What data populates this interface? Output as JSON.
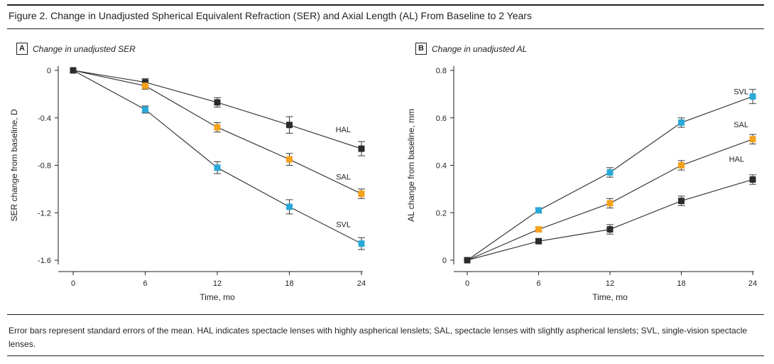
{
  "figure": {
    "title": "Figure 2. Change in Unadjusted Spherical Equivalent Refraction (SER) and Axial Length (AL) From Baseline to 2 Years",
    "caption": "Error bars represent standard errors of the mean. HAL indicates spectacle lenses with highly aspherical lenslets; SAL, spectacle lenses with slightly aspherical lenslets; SVL, single-vision spectacle lenses."
  },
  "panels": {
    "a": {
      "letter": "A",
      "title": "Change in unadjusted SER"
    },
    "b": {
      "letter": "B",
      "title": "Change in unadjusted AL"
    }
  },
  "colors": {
    "HAL": "#2b2b2b",
    "SAL": "#f4a21c",
    "SVL": "#2aa9d8",
    "axis": "#231f20",
    "line": "#3a3a3a"
  },
  "chart_data": [
    {
      "type": "line",
      "title": "Change in unadjusted SER",
      "xlabel": "Time, mo",
      "ylabel": "SER change from baseline, D",
      "x": [
        0,
        6,
        12,
        18,
        24
      ],
      "xticks": [
        "0",
        "6",
        "12",
        "18",
        "24"
      ],
      "yticks": [
        "0",
        "-0.4",
        "-0.8",
        "-1.2",
        "-1.6"
      ],
      "ytick_values": [
        0,
        -0.4,
        -0.8,
        -1.2,
        -1.6
      ],
      "ylim": [
        -1.6,
        0
      ],
      "xlim": [
        0,
        24
      ],
      "grid": false,
      "series": [
        {
          "name": "HAL",
          "values": [
            0,
            -0.1,
            -0.27,
            -0.46,
            -0.66
          ],
          "errors": [
            0,
            0.03,
            0.04,
            0.07,
            0.06
          ]
        },
        {
          "name": "SAL",
          "values": [
            0,
            -0.13,
            -0.48,
            -0.75,
            -1.04
          ],
          "errors": [
            0,
            0.03,
            0.04,
            0.05,
            0.04
          ]
        },
        {
          "name": "SVL",
          "values": [
            0,
            -0.33,
            -0.82,
            -1.15,
            -1.46
          ],
          "errors": [
            0,
            0.03,
            0.05,
            0.06,
            0.05
          ]
        }
      ]
    },
    {
      "type": "line",
      "title": "Change in unadjusted AL",
      "xlabel": "Time, mo",
      "ylabel": "AL change from baseline, mm",
      "x": [
        0,
        6,
        12,
        18,
        24
      ],
      "xticks": [
        "0",
        "6",
        "12",
        "18",
        "24"
      ],
      "yticks": [
        "0",
        "0.2",
        "0.4",
        "0.6",
        "0.8"
      ],
      "ytick_values": [
        0,
        0.2,
        0.4,
        0.6,
        0.8
      ],
      "ylim": [
        0,
        0.8
      ],
      "xlim": [
        0,
        24
      ],
      "grid": false,
      "series": [
        {
          "name": "HAL",
          "values": [
            0,
            0.08,
            0.13,
            0.25,
            0.34
          ],
          "errors": [
            0,
            0.01,
            0.02,
            0.02,
            0.02
          ]
        },
        {
          "name": "SAL",
          "values": [
            0,
            0.13,
            0.24,
            0.4,
            0.51
          ],
          "errors": [
            0,
            0.01,
            0.02,
            0.02,
            0.02
          ]
        },
        {
          "name": "SVL",
          "values": [
            0,
            0.21,
            0.37,
            0.58,
            0.69
          ],
          "errors": [
            0,
            0.01,
            0.02,
            0.02,
            0.03
          ]
        }
      ]
    }
  ]
}
